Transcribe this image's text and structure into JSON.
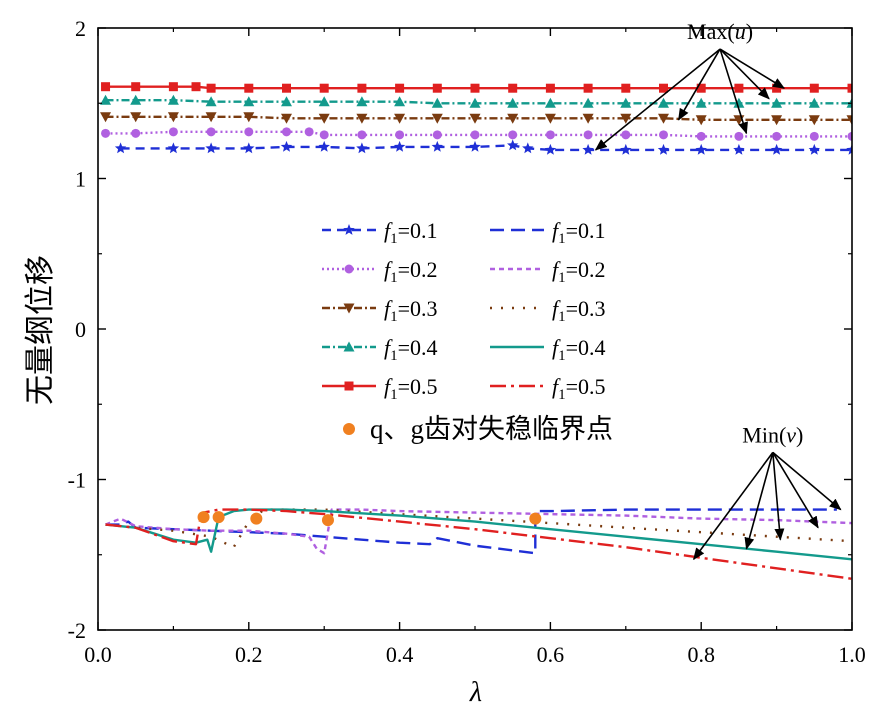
{
  "chart_data": {
    "type": "line",
    "xlabel": "λ",
    "ylabel": "无量纲位移",
    "xlim": [
      0,
      1
    ],
    "ylim": [
      -2,
      2
    ],
    "x_ticks": [
      "0.0",
      "0.2",
      "0.4",
      "0.6",
      "0.8",
      "1.0"
    ],
    "y_ticks": [
      "-2",
      "-1",
      "0",
      "1",
      "2"
    ],
    "annotations": [
      {
        "text_pre": "Max(",
        "text_var": "u",
        "text_post": ")",
        "anchor": [
          0.825,
          1.86
        ],
        "targets": [
          [
            0.66,
            1.19
          ],
          [
            0.77,
            1.39
          ],
          [
            0.86,
            1.3
          ],
          [
            0.89,
            1.53
          ],
          [
            0.91,
            1.6
          ]
        ]
      },
      {
        "text_pre": "Min(",
        "text_var": "v",
        "text_post": ")",
        "anchor": [
          0.895,
          -0.82
        ],
        "targets": [
          [
            0.79,
            -1.53
          ],
          [
            0.86,
            -1.46
          ],
          [
            0.905,
            -1.4
          ],
          [
            0.955,
            -1.32
          ],
          [
            0.985,
            -1.2
          ]
        ]
      }
    ],
    "legend": {
      "placement": "center",
      "var": "f",
      "sub": "1",
      "entries": [
        {
          "value": "=0.1",
          "series": 0
        },
        {
          "value": "=0.1",
          "series": 5
        },
        {
          "value": "=0.2",
          "series": 1
        },
        {
          "value": "=0.2",
          "series": 6
        },
        {
          "value": "=0.3",
          "series": 2
        },
        {
          "value": "=0.3",
          "series": 7
        },
        {
          "value": "=0.4",
          "series": 3
        },
        {
          "value": "=0.4",
          "series": 8
        },
        {
          "value": "=0.5",
          "series": 4
        },
        {
          "value": "=0.5",
          "series": 9
        }
      ],
      "critical_label": "q、g齿对失稳临界点"
    },
    "series": [
      {
        "group": "Max(u)",
        "color": "#1f2fd6",
        "dash": "9,6",
        "marker": "star",
        "points": [
          [
            0.03,
            1.2
          ],
          [
            0.1,
            1.2
          ],
          [
            0.15,
            1.2
          ],
          [
            0.2,
            1.2
          ],
          [
            0.25,
            1.21
          ],
          [
            0.3,
            1.21
          ],
          [
            0.35,
            1.2
          ],
          [
            0.4,
            1.21
          ],
          [
            0.45,
            1.21
          ],
          [
            0.5,
            1.21
          ],
          [
            0.55,
            1.22
          ],
          [
            0.57,
            1.2
          ],
          [
            0.6,
            1.19
          ],
          [
            0.65,
            1.19
          ],
          [
            0.7,
            1.19
          ],
          [
            0.75,
            1.19
          ],
          [
            0.8,
            1.19
          ],
          [
            0.85,
            1.19
          ],
          [
            0.9,
            1.19
          ],
          [
            0.95,
            1.19
          ],
          [
            1.0,
            1.19
          ]
        ]
      },
      {
        "group": "Max(u)",
        "color": "#b060e0",
        "dash": "2,3",
        "marker": "circle",
        "points": [
          [
            0.01,
            1.3
          ],
          [
            0.05,
            1.3
          ],
          [
            0.1,
            1.31
          ],
          [
            0.15,
            1.31
          ],
          [
            0.2,
            1.31
          ],
          [
            0.25,
            1.31
          ],
          [
            0.28,
            1.31
          ],
          [
            0.3,
            1.29
          ],
          [
            0.35,
            1.29
          ],
          [
            0.4,
            1.29
          ],
          [
            0.45,
            1.29
          ],
          [
            0.5,
            1.29
          ],
          [
            0.55,
            1.29
          ],
          [
            0.6,
            1.29
          ],
          [
            0.65,
            1.29
          ],
          [
            0.7,
            1.29
          ],
          [
            0.75,
            1.29
          ],
          [
            0.8,
            1.28
          ],
          [
            0.85,
            1.28
          ],
          [
            0.9,
            1.28
          ],
          [
            0.95,
            1.28
          ],
          [
            1.0,
            1.28
          ]
        ]
      },
      {
        "group": "Max(u)",
        "color": "#7a3b10",
        "dash": "8,3,2,3",
        "marker": "triangle-down",
        "points": [
          [
            0.01,
            1.41
          ],
          [
            0.05,
            1.41
          ],
          [
            0.1,
            1.41
          ],
          [
            0.15,
            1.41
          ],
          [
            0.2,
            1.41
          ],
          [
            0.25,
            1.4
          ],
          [
            0.3,
            1.4
          ],
          [
            0.35,
            1.4
          ],
          [
            0.4,
            1.4
          ],
          [
            0.45,
            1.4
          ],
          [
            0.5,
            1.4
          ],
          [
            0.55,
            1.4
          ],
          [
            0.6,
            1.4
          ],
          [
            0.65,
            1.4
          ],
          [
            0.7,
            1.4
          ],
          [
            0.75,
            1.4
          ],
          [
            0.8,
            1.39
          ],
          [
            0.85,
            1.39
          ],
          [
            0.9,
            1.39
          ],
          [
            0.95,
            1.39
          ],
          [
            1.0,
            1.39
          ]
        ]
      },
      {
        "group": "Max(u)",
        "color": "#139a8c",
        "dash": "8,3,2,3",
        "marker": "triangle-up",
        "points": [
          [
            0.01,
            1.52
          ],
          [
            0.05,
            1.52
          ],
          [
            0.1,
            1.52
          ],
          [
            0.15,
            1.51
          ],
          [
            0.2,
            1.51
          ],
          [
            0.25,
            1.51
          ],
          [
            0.3,
            1.51
          ],
          [
            0.35,
            1.51
          ],
          [
            0.4,
            1.51
          ],
          [
            0.45,
            1.5
          ],
          [
            0.5,
            1.5
          ],
          [
            0.55,
            1.5
          ],
          [
            0.6,
            1.5
          ],
          [
            0.65,
            1.5
          ],
          [
            0.7,
            1.5
          ],
          [
            0.75,
            1.5
          ],
          [
            0.8,
            1.5
          ],
          [
            0.85,
            1.5
          ],
          [
            0.9,
            1.5
          ],
          [
            0.95,
            1.5
          ],
          [
            1.0,
            1.5
          ]
        ]
      },
      {
        "group": "Max(u)",
        "color": "#e02020",
        "dash": "",
        "marker": "square",
        "points": [
          [
            0.01,
            1.61
          ],
          [
            0.05,
            1.61
          ],
          [
            0.1,
            1.61
          ],
          [
            0.13,
            1.61
          ],
          [
            0.15,
            1.6
          ],
          [
            0.2,
            1.6
          ],
          [
            0.25,
            1.6
          ],
          [
            0.3,
            1.6
          ],
          [
            0.35,
            1.6
          ],
          [
            0.4,
            1.6
          ],
          [
            0.45,
            1.6
          ],
          [
            0.5,
            1.6
          ],
          [
            0.55,
            1.6
          ],
          [
            0.6,
            1.6
          ],
          [
            0.65,
            1.6
          ],
          [
            0.7,
            1.6
          ],
          [
            0.75,
            1.6
          ],
          [
            0.8,
            1.6
          ],
          [
            0.85,
            1.6
          ],
          [
            0.9,
            1.6
          ],
          [
            0.95,
            1.6
          ],
          [
            1.0,
            1.6
          ]
        ]
      },
      {
        "group": "Min(v)",
        "color": "#1f2fd6",
        "dash": "14,7",
        "marker": "none",
        "points": [
          [
            0.01,
            -1.3
          ],
          [
            0.03,
            -1.3
          ],
          [
            0.04,
            -1.28
          ],
          [
            0.05,
            -1.32
          ],
          [
            0.1,
            -1.33
          ],
          [
            0.15,
            -1.34
          ],
          [
            0.2,
            -1.35
          ],
          [
            0.25,
            -1.36
          ],
          [
            0.3,
            -1.38
          ],
          [
            0.35,
            -1.4
          ],
          [
            0.4,
            -1.42
          ],
          [
            0.44,
            -1.43
          ],
          [
            0.45,
            -1.39
          ],
          [
            0.5,
            -1.44
          ],
          [
            0.58,
            -1.49
          ],
          [
            0.58,
            -1.21
          ],
          [
            0.6,
            -1.21
          ],
          [
            0.7,
            -1.2
          ],
          [
            0.8,
            -1.2
          ],
          [
            0.9,
            -1.2
          ],
          [
            0.98,
            -1.2
          ]
        ]
      },
      {
        "group": "Min(v)",
        "color": "#b060e0",
        "dash": "5,4",
        "marker": "none",
        "points": [
          [
            0.01,
            -1.3
          ],
          [
            0.03,
            -1.26
          ],
          [
            0.05,
            -1.31
          ],
          [
            0.1,
            -1.33
          ],
          [
            0.15,
            -1.34
          ],
          [
            0.2,
            -1.34
          ],
          [
            0.25,
            -1.36
          ],
          [
            0.28,
            -1.38
          ],
          [
            0.29,
            -1.46
          ],
          [
            0.3,
            -1.49
          ],
          [
            0.31,
            -1.2
          ],
          [
            0.35,
            -1.2
          ],
          [
            0.4,
            -1.21
          ],
          [
            0.5,
            -1.22
          ],
          [
            0.6,
            -1.23
          ],
          [
            0.7,
            -1.24
          ],
          [
            0.8,
            -1.26
          ],
          [
            0.9,
            -1.27
          ],
          [
            1.0,
            -1.29
          ]
        ]
      },
      {
        "group": "Min(v)",
        "color": "#7a3b10",
        "dash": "2,9",
        "marker": "none",
        "points": [
          [
            0.01,
            -1.3
          ],
          [
            0.05,
            -1.32
          ],
          [
            0.1,
            -1.34
          ],
          [
            0.15,
            -1.38
          ],
          [
            0.18,
            -1.45
          ],
          [
            0.2,
            -1.28
          ],
          [
            0.22,
            -1.2
          ],
          [
            0.25,
            -1.2
          ],
          [
            0.3,
            -1.2
          ],
          [
            0.4,
            -1.23
          ],
          [
            0.5,
            -1.26
          ],
          [
            0.6,
            -1.29
          ],
          [
            0.7,
            -1.32
          ],
          [
            0.8,
            -1.35
          ],
          [
            0.9,
            -1.38
          ],
          [
            1.0,
            -1.41
          ]
        ]
      },
      {
        "group": "Min(v)",
        "color": "#139a8c",
        "dash": "",
        "marker": "none",
        "points": [
          [
            0.01,
            -1.3
          ],
          [
            0.05,
            -1.32
          ],
          [
            0.1,
            -1.4
          ],
          [
            0.13,
            -1.42
          ],
          [
            0.145,
            -1.4
          ],
          [
            0.15,
            -1.48
          ],
          [
            0.16,
            -1.25
          ],
          [
            0.18,
            -1.21
          ],
          [
            0.2,
            -1.2
          ],
          [
            0.25,
            -1.2
          ],
          [
            0.3,
            -1.21
          ],
          [
            0.4,
            -1.24
          ],
          [
            0.5,
            -1.28
          ],
          [
            0.6,
            -1.33
          ],
          [
            0.7,
            -1.38
          ],
          [
            0.8,
            -1.43
          ],
          [
            0.9,
            -1.48
          ],
          [
            1.0,
            -1.53
          ]
        ]
      },
      {
        "group": "Min(v)",
        "color": "#e02020",
        "dash": "16,5,3,5",
        "marker": "none",
        "points": [
          [
            0.01,
            -1.3
          ],
          [
            0.05,
            -1.32
          ],
          [
            0.1,
            -1.41
          ],
          [
            0.13,
            -1.43
          ],
          [
            0.135,
            -1.28
          ],
          [
            0.14,
            -1.22
          ],
          [
            0.16,
            -1.2
          ],
          [
            0.2,
            -1.2
          ],
          [
            0.25,
            -1.21
          ],
          [
            0.3,
            -1.23
          ],
          [
            0.4,
            -1.28
          ],
          [
            0.5,
            -1.33
          ],
          [
            0.6,
            -1.39
          ],
          [
            0.7,
            -1.45
          ],
          [
            0.8,
            -1.52
          ],
          [
            0.9,
            -1.59
          ],
          [
            1.0,
            -1.66
          ]
        ]
      }
    ],
    "critical_points": {
      "color": "#f08020",
      "points": [
        [
          0.14,
          -1.25
        ],
        [
          0.16,
          -1.25
        ],
        [
          0.21,
          -1.26
        ],
        [
          0.305,
          -1.27
        ],
        [
          0.58,
          -1.26
        ]
      ]
    }
  }
}
